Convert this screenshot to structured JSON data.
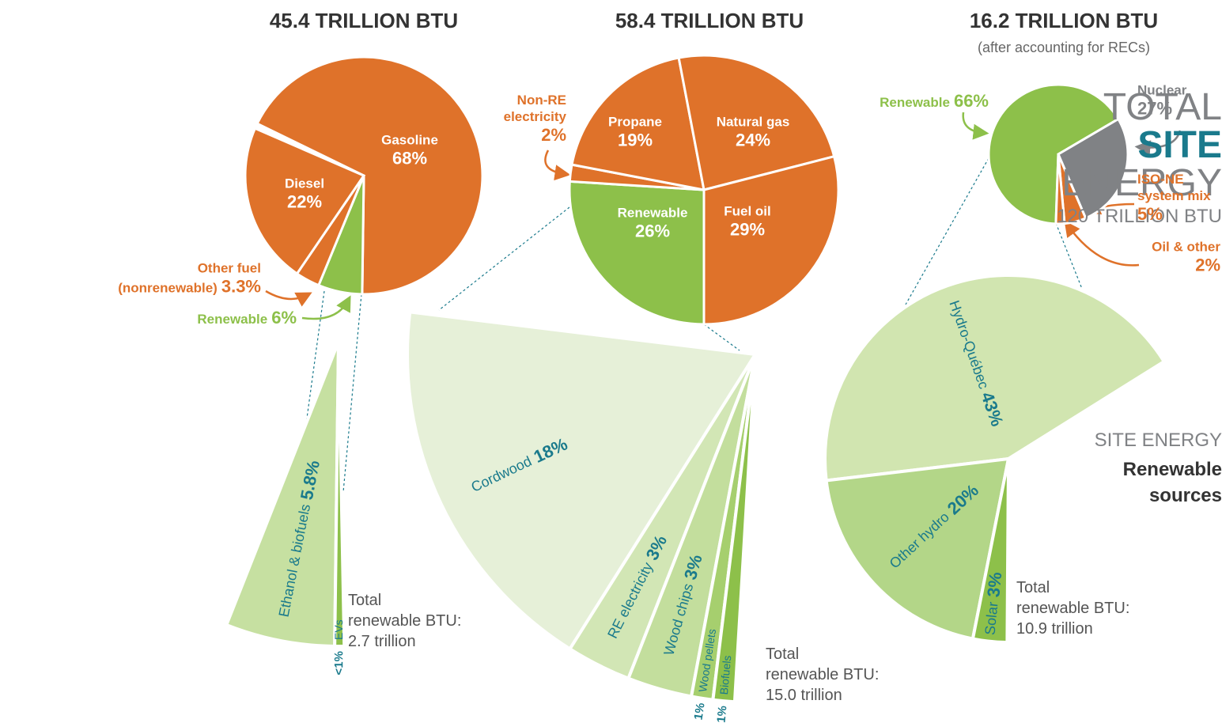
{
  "header": {
    "title_lines": [
      "TOTAL",
      "SITE",
      "ENERGY"
    ],
    "total": "120 TRILLION BTU",
    "sub": "SITE ENERGY",
    "sub_lines": [
      "Renewable",
      "sources"
    ]
  },
  "chart_data": [
    {
      "type": "pie",
      "title": "45.4 TRILLION BTU",
      "categories": [
        "Gasoline",
        "Renewable",
        "Other fuel (nonrenewable)",
        "Diesel"
      ],
      "values": [
        68,
        6,
        3.3,
        22
      ],
      "value_labels": [
        "68%",
        "6%",
        "3.3%",
        "22%"
      ],
      "colors": [
        "#df722a",
        "#8dc04a",
        "#df722a",
        "#df722a"
      ]
    },
    {
      "type": "pie",
      "title": "58.4 TRILLION BTU",
      "categories": [
        "Renewable",
        "Non-RE electricity",
        "Propane",
        "Natural gas",
        "Fuel oil"
      ],
      "values": [
        26,
        2,
        19,
        24,
        29
      ],
      "value_labels": [
        "26%",
        "2%",
        "19%",
        "24%",
        "29%"
      ],
      "colors": [
        "#8dc04a",
        "#df722a",
        "#df722a",
        "#df722a",
        "#df722a"
      ]
    },
    {
      "type": "pie",
      "title": "16.2 TRILLION BTU",
      "subtitle": "(after accounting for RECs)",
      "categories": [
        "Renewable",
        "Nuclear",
        "ISO-NE system mix",
        "Oil & other"
      ],
      "values": [
        66,
        27,
        5,
        2
      ],
      "value_labels": [
        "66%",
        "27%",
        "5%",
        "2%"
      ],
      "colors": [
        "#8dc04a",
        "#808285",
        "#df722a",
        "#df722a"
      ]
    },
    {
      "type": "fan",
      "categories": [
        "Ethanol & biofuels",
        "EVs"
      ],
      "values": [
        5.8,
        0.5
      ],
      "value_labels": [
        "5.8%",
        "<1%"
      ],
      "colors": [
        "#c6e0a1",
        "#8dc04a"
      ],
      "note_lines": [
        "Total",
        "renewable BTU:",
        "2.7 trillion"
      ]
    },
    {
      "type": "fan",
      "categories": [
        "Cordwood",
        "RE electricity",
        "Wood chips",
        "Wood pellets",
        "Biofuels"
      ],
      "values": [
        18,
        3,
        3,
        1,
        1
      ],
      "value_labels": [
        "18%",
        "3%",
        "3%",
        "1%",
        "1%"
      ],
      "colors": [
        "#e6f0d8",
        "#d2e6b5",
        "#c3de9d",
        "#a6cf6e",
        "#8dc04a"
      ],
      "note_lines": [
        "Total",
        "renewable BTU:",
        "15.0 trillion"
      ]
    },
    {
      "type": "fan",
      "categories": [
        "Hydro-Québec",
        "Other hydro",
        "Solar"
      ],
      "values": [
        43,
        20,
        3
      ],
      "value_labels": [
        "43%",
        "20%",
        "3%"
      ],
      "colors": [
        "#d1e5b0",
        "#b3d688",
        "#8dc04a"
      ],
      "note_lines": [
        "Total",
        "renewable BTU:",
        "10.9 trillion"
      ]
    }
  ]
}
